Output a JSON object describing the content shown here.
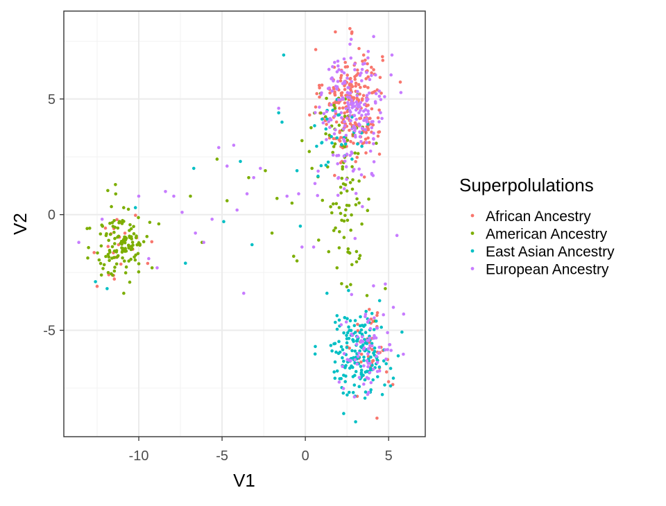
{
  "chart_data": {
    "type": "scatter",
    "title": "",
    "xlabel": "V1",
    "ylabel": "V2",
    "xlim": [
      -14.5,
      7.2
    ],
    "ylim": [
      -9.6,
      8.8
    ],
    "x_ticks": [
      -10,
      -5,
      0,
      5
    ],
    "x_tick_labels": [
      "-10",
      "-5",
      "0",
      "5"
    ],
    "y_ticks": [
      -5,
      0,
      5
    ],
    "y_tick_labels": [
      "-5",
      "0",
      "5"
    ],
    "grid": true,
    "legend": {
      "title": "Superpolulations",
      "placement": "right"
    },
    "series": [
      {
        "name": "African Ancestry",
        "color": "#F8766D",
        "clusters": [
          {
            "cx": 2.8,
            "cy": 4.8,
            "sx": 0.9,
            "sy": 1.2,
            "n": 230
          },
          {
            "cx": 4.0,
            "cy": -5.8,
            "sx": 0.6,
            "sy": 0.9,
            "n": 40
          },
          {
            "cx": -11.0,
            "cy": -1.4,
            "sx": 0.7,
            "sy": 0.7,
            "n": 22
          }
        ],
        "points": [
          [
            1.8,
            7.9
          ],
          [
            1.0,
            5.6
          ],
          [
            3.3,
            5.5
          ],
          [
            2.2,
            2.3
          ],
          [
            4.3,
            -8.8
          ],
          [
            -12.5,
            -3.1
          ],
          [
            -11.8,
            -2.6
          ],
          [
            3.5,
            6.9
          ]
        ]
      },
      {
        "name": "American Ancestry",
        "color": "#7CAE00",
        "clusters": [
          {
            "cx": -11.0,
            "cy": -1.2,
            "sx": 0.8,
            "sy": 0.8,
            "n": 120
          },
          {
            "cx": 2.4,
            "cy": 0.6,
            "sx": 0.8,
            "sy": 2.0,
            "n": 70
          },
          {
            "cx": 2.2,
            "cy": 3.8,
            "sx": 0.7,
            "sy": 0.8,
            "n": 25
          }
        ],
        "points": [
          [
            -11.4,
            1.3
          ],
          [
            -10.9,
            -3.4
          ],
          [
            -13.1,
            -0.6
          ],
          [
            -9.2,
            -2.3
          ],
          [
            -5.3,
            2.4
          ],
          [
            -3.4,
            1.6
          ],
          [
            -1.7,
            0.7
          ],
          [
            -0.8,
            0.5
          ],
          [
            -0.7,
            -1.8
          ],
          [
            -0.5,
            -2.0
          ],
          [
            -0.2,
            3.2
          ],
          [
            -2.0,
            -0.8
          ],
          [
            1.9,
            -2.3
          ],
          [
            3.7,
            -3.5
          ],
          [
            4.8,
            -3.2
          ],
          [
            4.2,
            -4.6
          ],
          [
            -6.2,
            -1.2
          ],
          [
            -8.8,
            -0.4
          ],
          [
            -6.9,
            0.8
          ],
          [
            -2.4,
            1.9
          ],
          [
            -4.7,
            0.6
          ],
          [
            0.8,
            -1.1
          ],
          [
            0.4,
            2.0
          ]
        ]
      },
      {
        "name": "East Asian Ancestry",
        "color": "#00BFC4",
        "clusters": [
          {
            "cx": 3.2,
            "cy": -6.0,
            "sx": 0.9,
            "sy": 0.9,
            "n": 180
          },
          {
            "cx": 2.0,
            "cy": 3.4,
            "sx": 0.8,
            "sy": 0.7,
            "n": 28
          }
        ],
        "points": [
          [
            -1.3,
            6.9
          ],
          [
            -1.4,
            4.0
          ],
          [
            -1.6,
            4.4
          ],
          [
            -3.9,
            2.3
          ],
          [
            -4.9,
            -0.3
          ],
          [
            -3.2,
            -1.3
          ],
          [
            -6.7,
            2.0
          ],
          [
            -7.2,
            -2.1
          ],
          [
            -0.3,
            -0.5
          ],
          [
            -0.5,
            1.9
          ],
          [
            0.6,
            -5.7
          ],
          [
            1.3,
            -3.4
          ],
          [
            2.3,
            -8.6
          ],
          [
            -12.6,
            -2.9
          ],
          [
            -11.9,
            -3.2
          ],
          [
            -10.2,
            0.3
          ],
          [
            1.6,
            3.1
          ],
          [
            2.8,
            2.4
          ]
        ]
      },
      {
        "name": "European Ancestry",
        "color": "#C77CFF",
        "clusters": [
          {
            "cx": 2.9,
            "cy": 5.0,
            "sx": 1.0,
            "sy": 1.0,
            "n": 150
          },
          {
            "cx": 3.8,
            "cy": -5.9,
            "sx": 0.8,
            "sy": 1.0,
            "n": 75
          },
          {
            "cx": 2.6,
            "cy": 2.2,
            "sx": 1.0,
            "sy": 1.2,
            "n": 40
          }
        ],
        "points": [
          [
            -13.6,
            -1.2
          ],
          [
            -12.2,
            -0.2
          ],
          [
            -8.9,
            -2.3
          ],
          [
            -8.4,
            1.0
          ],
          [
            -7.9,
            0.8
          ],
          [
            -7.4,
            0.1
          ],
          [
            -6.6,
            -0.8
          ],
          [
            -6.1,
            -1.2
          ],
          [
            -5.6,
            -0.2
          ],
          [
            -5.2,
            2.9
          ],
          [
            -4.7,
            2.1
          ],
          [
            -4.3,
            3.0
          ],
          [
            -4.1,
            0.2
          ],
          [
            -3.7,
            -3.4
          ],
          [
            -3.5,
            0.9
          ],
          [
            -3.1,
            1.6
          ],
          [
            -2.7,
            2.0
          ],
          [
            -1.6,
            4.6
          ],
          [
            -1.1,
            0.8
          ],
          [
            -0.4,
            0.9
          ],
          [
            -0.2,
            -1.4
          ],
          [
            0.5,
            -1.4
          ],
          [
            4.1,
            7.7
          ],
          [
            5.2,
            6.9
          ],
          [
            5.5,
            -0.9
          ],
          [
            5.9,
            -4.3
          ],
          [
            4.8,
            -3.0
          ],
          [
            -10.0,
            0.8
          ],
          [
            -9.4,
            -1.9
          ]
        ]
      }
    ]
  }
}
